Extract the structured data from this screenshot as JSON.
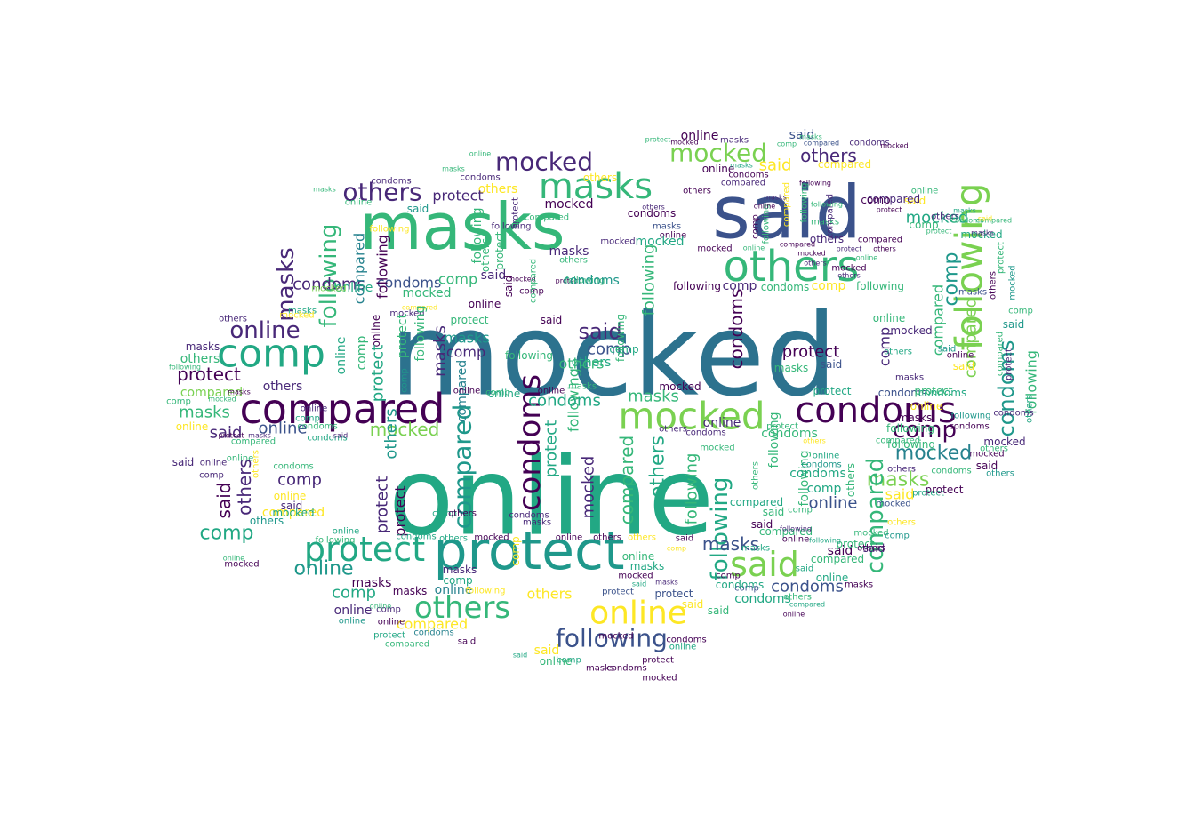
{
  "colors": {
    "background": "#ffffff",
    "palette": [
      "#2c728e",
      "#22a884",
      "#3b528b",
      "#440154",
      "#7ad151",
      "#fde725",
      "#414487",
      "#1f988b",
      "#35b779",
      "#482878",
      "#bddf26",
      "#26828e",
      "#31688e"
    ]
  },
  "words": {
    "mocked": "mocked",
    "online": "online",
    "said": "said",
    "masks": "masks",
    "protect": "protect",
    "compared": "compared",
    "condoms": "condoms",
    "following": "following",
    "others": "others",
    "comp": "comp"
  }
}
